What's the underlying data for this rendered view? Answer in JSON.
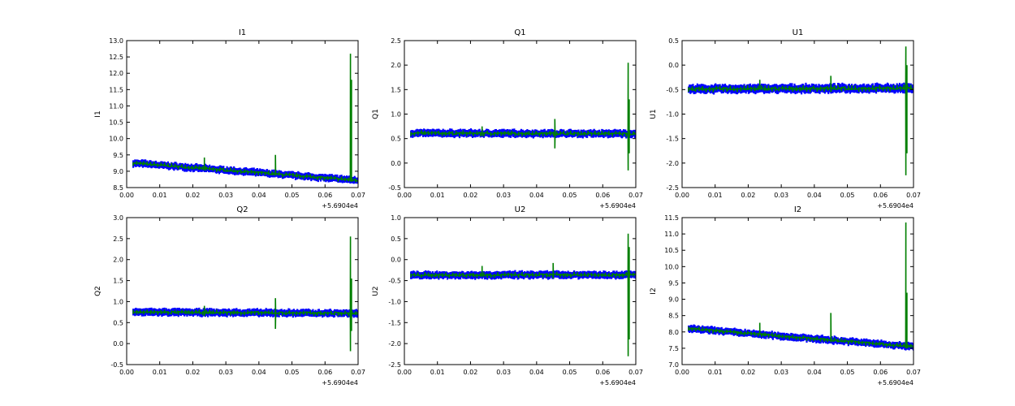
{
  "chart_data": [
    {
      "type": "line",
      "title": "I1",
      "xlabel": "",
      "ylabel": "I1",
      "xlim": [
        0.0,
        0.07
      ],
      "ylim": [
        8.5,
        13.0
      ],
      "ystep": 0.5,
      "ydec": 1,
      "x_offset_label": "+5.6904e4",
      "x_ticks": [
        "0.00",
        "0.01",
        "0.02",
        "0.03",
        "0.04",
        "0.05",
        "0.06",
        "0.07"
      ],
      "trend": {
        "x": [
          0.002,
          0.07
        ],
        "y": [
          9.25,
          8.72
        ]
      },
      "errorbar": 0.1,
      "spikes": [
        {
          "x": 0.0235,
          "hi": 9.42,
          "lo": 9.1
        },
        {
          "x": 0.045,
          "hi": 9.5,
          "lo": 9.0
        },
        {
          "x": 0.0677,
          "hi": 12.6,
          "lo": 8.7
        },
        {
          "x": 0.068,
          "hi": 11.8,
          "lo": 8.7
        }
      ]
    },
    {
      "type": "line",
      "title": "Q1",
      "xlabel": "",
      "ylabel": "Q1",
      "xlim": [
        0.0,
        0.07
      ],
      "ylim": [
        -0.5,
        2.5
      ],
      "ystep": 0.5,
      "ydec": 1,
      "x_offset_label": "+5.6904e4",
      "x_ticks": [
        "0.00",
        "0.01",
        "0.02",
        "0.03",
        "0.04",
        "0.05",
        "0.06",
        "0.07"
      ],
      "trend": {
        "x": [
          0.002,
          0.07
        ],
        "y": [
          0.61,
          0.6
        ]
      },
      "errorbar": 0.07,
      "spikes": [
        {
          "x": 0.0235,
          "hi": 0.75,
          "lo": 0.55
        },
        {
          "x": 0.0455,
          "hi": 0.9,
          "lo": 0.3
        },
        {
          "x": 0.0677,
          "hi": 2.05,
          "lo": -0.15
        },
        {
          "x": 0.068,
          "hi": 1.3,
          "lo": 0.2
        }
      ]
    },
    {
      "type": "line",
      "title": "U1",
      "xlabel": "",
      "ylabel": "U1",
      "xlim": [
        0.0,
        0.07
      ],
      "ylim": [
        -2.5,
        0.5
      ],
      "ystep": 0.5,
      "ydec": 1,
      "x_offset_label": "+5.6904e4",
      "x_ticks": [
        "0.00",
        "0.01",
        "0.02",
        "0.03",
        "0.04",
        "0.05",
        "0.06",
        "0.07"
      ],
      "trend": {
        "x": [
          0.002,
          0.07
        ],
        "y": [
          -0.49,
          -0.47
        ]
      },
      "errorbar": 0.08,
      "spikes": [
        {
          "x": 0.0235,
          "hi": -0.3,
          "lo": -0.5
        },
        {
          "x": 0.045,
          "hi": -0.22,
          "lo": -0.55
        },
        {
          "x": 0.0677,
          "hi": 0.38,
          "lo": -2.25
        },
        {
          "x": 0.068,
          "hi": 0.0,
          "lo": -1.8
        }
      ]
    },
    {
      "type": "line",
      "title": "Q2",
      "xlabel": "",
      "ylabel": "Q2",
      "xlim": [
        0.0,
        0.07
      ],
      "ylim": [
        -0.5,
        3.0
      ],
      "ystep": 0.5,
      "ydec": 1,
      "x_offset_label": "+5.6904e4",
      "x_ticks": [
        "0.00",
        "0.01",
        "0.02",
        "0.03",
        "0.04",
        "0.05",
        "0.06",
        "0.07"
      ],
      "trend": {
        "x": [
          0.002,
          0.07
        ],
        "y": [
          0.75,
          0.72
        ]
      },
      "errorbar": 0.08,
      "spikes": [
        {
          "x": 0.0235,
          "hi": 0.9,
          "lo": 0.65
        },
        {
          "x": 0.045,
          "hi": 1.08,
          "lo": 0.35
        },
        {
          "x": 0.0677,
          "hi": 2.55,
          "lo": -0.18
        },
        {
          "x": 0.068,
          "hi": 1.55,
          "lo": 0.3
        }
      ]
    },
    {
      "type": "line",
      "title": "U2",
      "xlabel": "",
      "ylabel": "U2",
      "xlim": [
        0.0,
        0.07
      ],
      "ylim": [
        -2.5,
        1.0
      ],
      "ystep": 0.5,
      "ydec": 1,
      "x_offset_label": "+5.6904e4",
      "x_ticks": [
        "0.00",
        "0.01",
        "0.02",
        "0.03",
        "0.04",
        "0.05",
        "0.06",
        "0.07"
      ],
      "trend": {
        "x": [
          0.002,
          0.07
        ],
        "y": [
          -0.37,
          -0.36
        ]
      },
      "errorbar": 0.08,
      "spikes": [
        {
          "x": 0.0235,
          "hi": -0.15,
          "lo": -0.4
        },
        {
          "x": 0.045,
          "hi": -0.08,
          "lo": -0.45
        },
        {
          "x": 0.0677,
          "hi": 0.62,
          "lo": -2.3
        },
        {
          "x": 0.068,
          "hi": 0.3,
          "lo": -1.9
        }
      ]
    },
    {
      "type": "line",
      "title": "I2",
      "xlabel": "",
      "ylabel": "I2",
      "xlim": [
        0.0,
        0.07
      ],
      "ylim": [
        7.0,
        11.5
      ],
      "ystep": 0.5,
      "ydec": 1,
      "x_offset_label": "+5.6904e4",
      "x_ticks": [
        "0.00",
        "0.01",
        "0.02",
        "0.03",
        "0.04",
        "0.05",
        "0.06",
        "0.07"
      ],
      "trend": {
        "x": [
          0.002,
          0.07
        ],
        "y": [
          8.1,
          7.55
        ]
      },
      "errorbar": 0.1,
      "spikes": [
        {
          "x": 0.0235,
          "hi": 8.28,
          "lo": 7.95
        },
        {
          "x": 0.045,
          "hi": 8.58,
          "lo": 7.8
        },
        {
          "x": 0.0677,
          "hi": 11.35,
          "lo": 7.5
        },
        {
          "x": 0.068,
          "hi": 9.2,
          "lo": 7.5
        }
      ]
    }
  ],
  "colors": {
    "errorbar": "#0000ff",
    "line": "#007f00",
    "axes": "#000000"
  }
}
